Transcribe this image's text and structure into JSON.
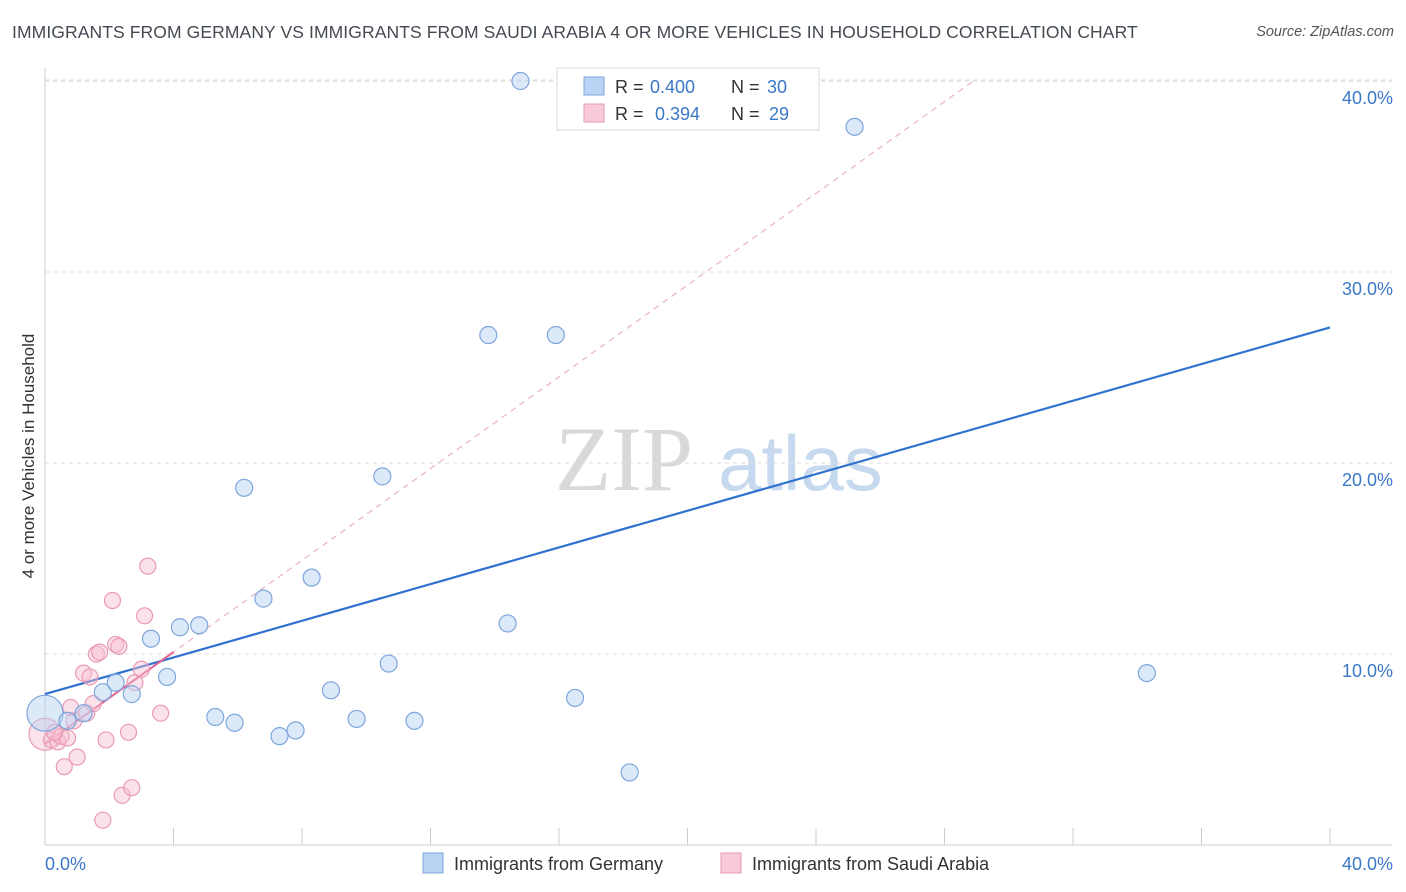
{
  "header": {
    "title": "IMMIGRANTS FROM GERMANY VS IMMIGRANTS FROM SAUDI ARABIA 4 OR MORE VEHICLES IN HOUSEHOLD CORRELATION CHART",
    "source": "Source: ZipAtlas.com"
  },
  "watermark": {
    "zip": "ZIP",
    "atlas": "atlas"
  },
  "legend": {
    "r_label": "R =",
    "n_label": "N =",
    "germany": {
      "r": "0.400",
      "n": "30"
    },
    "saudi": {
      "r": "0.394",
      "n": "29"
    }
  },
  "chart_data": {
    "type": "scatter",
    "title": "IMMIGRANTS FROM GERMANY VS IMMIGRANTS FROM SAUDI ARABIA 4 OR MORE VEHICLES IN HOUSEHOLD CORRELATION CHART",
    "xlabel": "",
    "ylabel": "4 or more Vehicles in Household",
    "xlim": [
      0,
      40
    ],
    "ylim": [
      0,
      42
    ],
    "x_tick_labels": [
      "0.0%",
      "40.0%"
    ],
    "y_ticks": [
      10,
      20,
      30,
      40
    ],
    "y_tick_labels": [
      "10.0%",
      "20.0%",
      "30.0%",
      "40.0%"
    ],
    "grid": true,
    "legend_position": "top-center",
    "colors": {
      "germany": "#5b8fd6",
      "saudi": "#e889a6",
      "germany_line": "#2f72d0",
      "saudi_line": "#e06090"
    },
    "series": [
      {
        "name": "Immigrants from Germany",
        "r": 0.4,
        "n": 30,
        "trend": {
          "x": [
            0,
            40
          ],
          "y": [
            7.9,
            27.1
          ]
        },
        "points": [
          {
            "x": 0.0,
            "y": 6.9,
            "big": true
          },
          {
            "x": 0.7,
            "y": 6.5
          },
          {
            "x": 1.2,
            "y": 6.9
          },
          {
            "x": 1.8,
            "y": 8.0
          },
          {
            "x": 2.2,
            "y": 8.5
          },
          {
            "x": 2.7,
            "y": 7.9
          },
          {
            "x": 3.3,
            "y": 10.8
          },
          {
            "x": 3.8,
            "y": 8.8
          },
          {
            "x": 4.2,
            "y": 11.4
          },
          {
            "x": 4.8,
            "y": 11.5
          },
          {
            "x": 5.3,
            "y": 6.7
          },
          {
            "x": 5.9,
            "y": 6.4
          },
          {
            "x": 6.2,
            "y": 18.7
          },
          {
            "x": 6.8,
            "y": 12.9
          },
          {
            "x": 7.3,
            "y": 5.7
          },
          {
            "x": 7.8,
            "y": 6.0
          },
          {
            "x": 8.3,
            "y": 14.0
          },
          {
            "x": 8.9,
            "y": 8.1
          },
          {
            "x": 9.7,
            "y": 6.6
          },
          {
            "x": 10.5,
            "y": 19.3
          },
          {
            "x": 10.7,
            "y": 9.5
          },
          {
            "x": 11.5,
            "y": 6.5
          },
          {
            "x": 13.8,
            "y": 26.7
          },
          {
            "x": 14.4,
            "y": 11.6
          },
          {
            "x": 14.8,
            "y": 40.0
          },
          {
            "x": 15.9,
            "y": 26.7
          },
          {
            "x": 16.5,
            "y": 7.7
          },
          {
            "x": 18.2,
            "y": 3.8
          },
          {
            "x": 25.2,
            "y": 37.6
          },
          {
            "x": 34.3,
            "y": 9.0
          }
        ]
      },
      {
        "name": "Immigrants from Saudi Arabia",
        "r": 0.394,
        "n": 29,
        "trend": {
          "x": [
            0,
            4.0
          ],
          "y": [
            5.3,
            10.1
          ]
        },
        "trend_extended": {
          "x": [
            0,
            28.9
          ],
          "y": [
            5.3,
            40.0
          ]
        },
        "points": [
          {
            "x": 0.0,
            "y": 5.8,
            "big": true
          },
          {
            "x": 0.2,
            "y": 5.5
          },
          {
            "x": 0.4,
            "y": 5.4
          },
          {
            "x": 0.5,
            "y": 5.7
          },
          {
            "x": 0.6,
            "y": 4.1
          },
          {
            "x": 0.7,
            "y": 5.6
          },
          {
            "x": 0.8,
            "y": 7.2
          },
          {
            "x": 0.9,
            "y": 6.5
          },
          {
            "x": 1.0,
            "y": 4.6
          },
          {
            "x": 1.2,
            "y": 9.0
          },
          {
            "x": 1.3,
            "y": 6.9
          },
          {
            "x": 1.4,
            "y": 8.8
          },
          {
            "x": 1.5,
            "y": 7.4
          },
          {
            "x": 1.6,
            "y": 10.0
          },
          {
            "x": 1.7,
            "y": 10.1
          },
          {
            "x": 1.8,
            "y": 1.3
          },
          {
            "x": 1.9,
            "y": 5.5
          },
          {
            "x": 2.1,
            "y": 12.8
          },
          {
            "x": 2.2,
            "y": 10.5
          },
          {
            "x": 2.3,
            "y": 10.4
          },
          {
            "x": 2.4,
            "y": 2.6
          },
          {
            "x": 2.6,
            "y": 5.9
          },
          {
            "x": 2.7,
            "y": 3.0
          },
          {
            "x": 2.8,
            "y": 8.5
          },
          {
            "x": 3.0,
            "y": 9.2
          },
          {
            "x": 3.1,
            "y": 12.0
          },
          {
            "x": 3.2,
            "y": 14.6
          },
          {
            "x": 3.6,
            "y": 6.9
          },
          {
            "x": 0.3,
            "y": 5.9
          }
        ]
      }
    ]
  }
}
